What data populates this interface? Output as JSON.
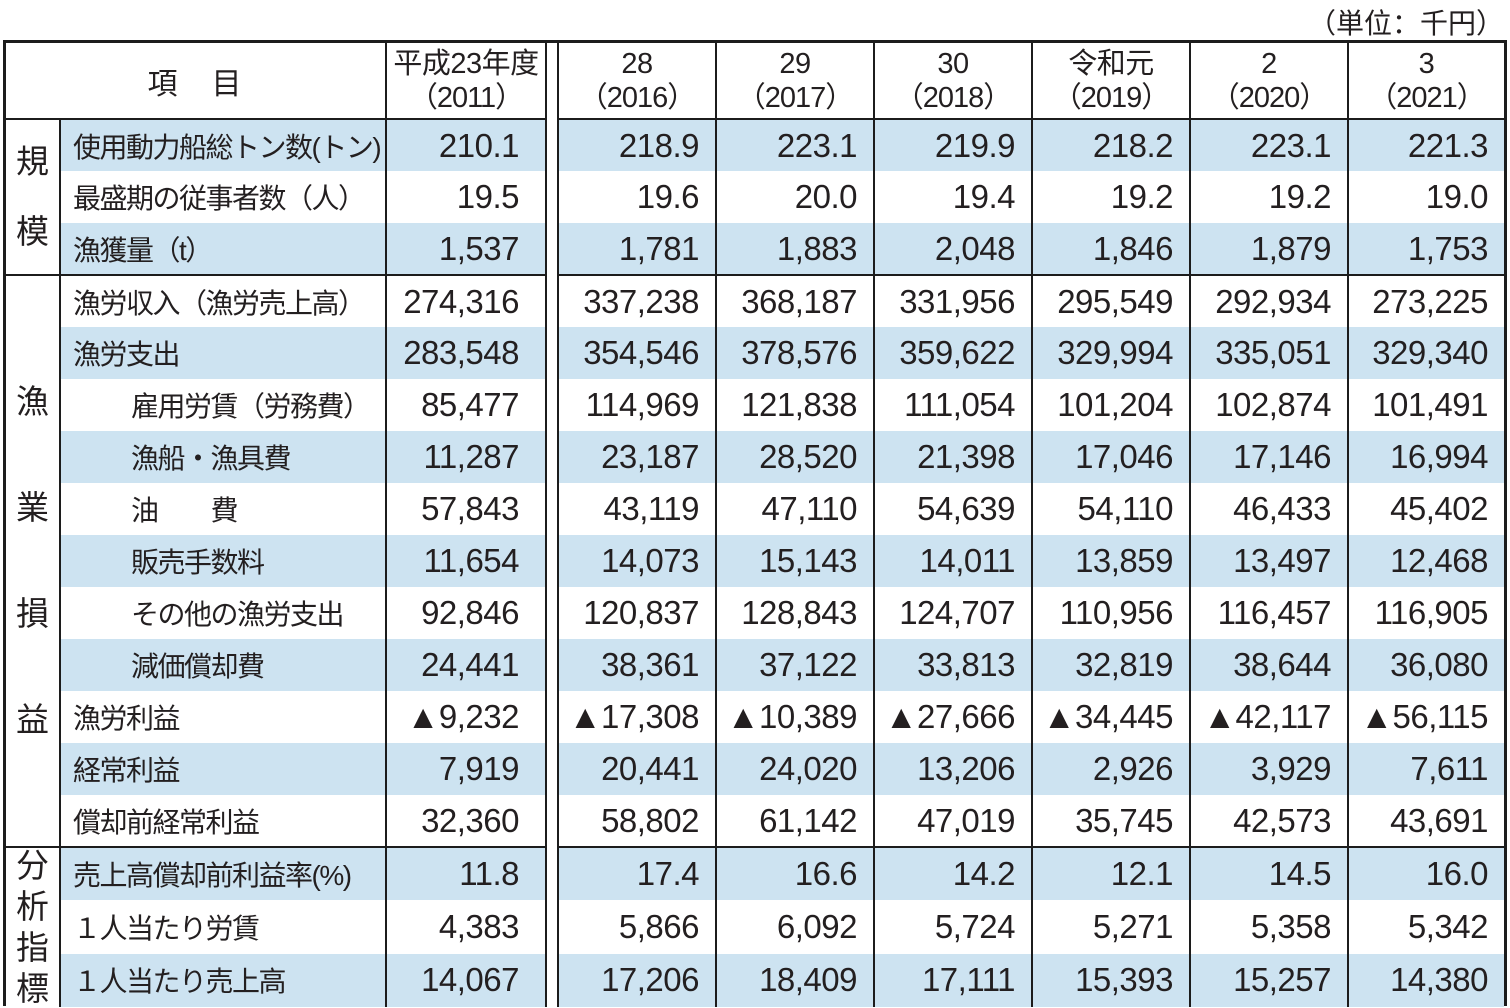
{
  "unit_note": "（単位：千円）",
  "accent_colors": {
    "row_stripe_blue": "#cde3f1",
    "border_black": "#1c1c1c"
  },
  "table": {
    "header": {
      "item_label": "項　目",
      "year_columns": [
        {
          "era": "平成23年度",
          "paren": "（2011）"
        },
        {
          "era": "28",
          "paren": "（2016）"
        },
        {
          "era": "29",
          "paren": "（2017）"
        },
        {
          "era": "30",
          "paren": "（2018）"
        },
        {
          "era": "令和元",
          "paren": "（2019）"
        },
        {
          "era": "2",
          "paren": "（2020）"
        },
        {
          "era": "3",
          "paren": "（2021）"
        }
      ]
    },
    "groups": [
      {
        "label": "規模",
        "rows": [
          {
            "label": "使用動力船総トン数(トン)",
            "indent": false,
            "values": [
              "210.1",
              "218.9",
              "223.1",
              "219.9",
              "218.2",
              "223.1",
              "221.3"
            ]
          },
          {
            "label": "最盛期の従事者数（人）",
            "indent": false,
            "values": [
              "19.5",
              "19.6",
              "20.0",
              "19.4",
              "19.2",
              "19.2",
              "19.0"
            ]
          },
          {
            "label": "漁獲量（t）",
            "indent": false,
            "values": [
              "1,537",
              "1,781",
              "1,883",
              "2,048",
              "1,846",
              "1,879",
              "1,753"
            ]
          }
        ]
      },
      {
        "label": "漁業損益",
        "rows": [
          {
            "label": "漁労収入（漁労売上高）",
            "indent": false,
            "values": [
              "274,316",
              "337,238",
              "368,187",
              "331,956",
              "295,549",
              "292,934",
              "273,225"
            ]
          },
          {
            "label": "漁労支出",
            "indent": false,
            "values": [
              "283,548",
              "354,546",
              "378,576",
              "359,622",
              "329,994",
              "335,051",
              "329,340"
            ]
          },
          {
            "label": "雇用労賃（労務費）",
            "indent": true,
            "values": [
              "85,477",
              "114,969",
              "121,838",
              "111,054",
              "101,204",
              "102,874",
              "101,491"
            ]
          },
          {
            "label": "漁船・漁具費",
            "indent": true,
            "values": [
              "11,287",
              "23,187",
              "28,520",
              "21,398",
              "17,046",
              "17,146",
              "16,994"
            ]
          },
          {
            "label": "油　　費",
            "indent": true,
            "values": [
              "57,843",
              "43,119",
              "47,110",
              "54,639",
              "54,110",
              "46,433",
              "45,402"
            ]
          },
          {
            "label": "販売手数料",
            "indent": true,
            "values": [
              "11,654",
              "14,073",
              "15,143",
              "14,011",
              "13,859",
              "13,497",
              "12,468"
            ]
          },
          {
            "label": "その他の漁労支出",
            "indent": true,
            "values": [
              "92,846",
              "120,837",
              "128,843",
              "124,707",
              "110,956",
              "116,457",
              "116,905"
            ]
          },
          {
            "label": "減価償却費",
            "indent": true,
            "values": [
              "24,441",
              "38,361",
              "37,122",
              "33,813",
              "32,819",
              "38,644",
              "36,080"
            ]
          },
          {
            "label": "漁労利益",
            "indent": false,
            "values": [
              "▲9,232",
              "▲17,308",
              "▲10,389",
              "▲27,666",
              "▲34,445",
              "▲42,117",
              "▲56,115"
            ]
          },
          {
            "label": "経常利益",
            "indent": false,
            "values": [
              "7,919",
              "20,441",
              "24,020",
              "13,206",
              "2,926",
              "3,929",
              "7,611"
            ]
          },
          {
            "label": "償却前経常利益",
            "indent": false,
            "values": [
              "32,360",
              "58,802",
              "61,142",
              "47,019",
              "35,745",
              "42,573",
              "43,691"
            ]
          }
        ]
      },
      {
        "label": "分析指標",
        "rows": [
          {
            "label": "売上高償却前利益率(%)",
            "indent": false,
            "values": [
              "11.8",
              "17.4",
              "16.6",
              "14.2",
              "12.1",
              "14.5",
              "16.0"
            ]
          },
          {
            "label": "１人当たり労賃",
            "indent": false,
            "values": [
              "4,383",
              "5,866",
              "6,092",
              "5,724",
              "5,271",
              "5,358",
              "5,342"
            ]
          },
          {
            "label": "１人当たり売上高",
            "indent": false,
            "values": [
              "14,067",
              "17,206",
              "18,409",
              "17,111",
              "15,393",
              "15,257",
              "14,380"
            ]
          }
        ]
      }
    ]
  }
}
